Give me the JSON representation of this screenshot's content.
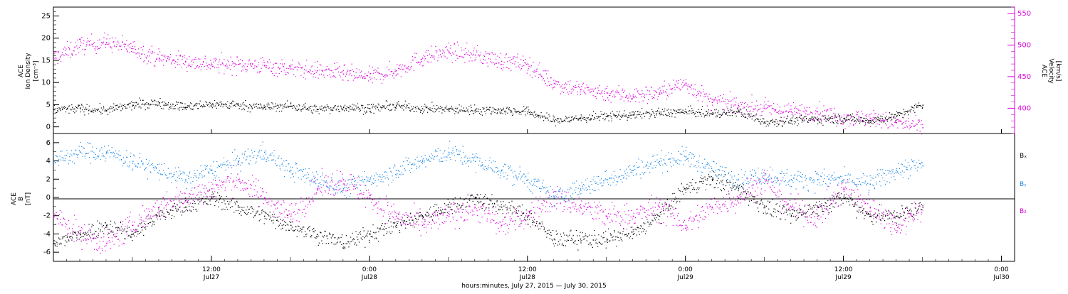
{
  "colors": {
    "black": "#000000",
    "magenta": "#dd00dd",
    "blue": "#1e88e5",
    "frame": "#000000"
  },
  "x_axis": {
    "title": "hours:minutes, July 27, 2015 — July 30, 2015",
    "ticks": [
      {
        "hours": 12,
        "time": "12:00",
        "day": "Jul27"
      },
      {
        "hours": 24,
        "time": "0:00",
        "day": "Jul28"
      },
      {
        "hours": 36,
        "time": "12:00",
        "day": "Jul28"
      },
      {
        "hours": 48,
        "time": "0:00",
        "day": "Jul29"
      },
      {
        "hours": 60,
        "time": "12:00",
        "day": "Jul29"
      },
      {
        "hours": 72,
        "time": "0:00",
        "day": "Jul30"
      }
    ]
  },
  "panel_top": {
    "left_label": [
      "ACE",
      "Ion Density",
      "[cm⁻³]"
    ],
    "right_label": [
      "ACE",
      "Velocity",
      "[km/s]"
    ],
    "left_ticks": [
      "0",
      "5",
      "10",
      "15",
      "20",
      "25"
    ],
    "right_ticks": [
      "400",
      "450",
      "500",
      "550"
    ]
  },
  "panel_bottom": {
    "left_label": [
      "ACE",
      "B",
      "[nT]"
    ],
    "left_ticks": [
      "-6",
      "-4",
      "-2",
      "0",
      "2",
      "4",
      "6"
    ],
    "legend": [
      {
        "text": "Bₓ",
        "color": "#000000"
      },
      {
        "text": "Bᵧ",
        "color": "#1e88e5"
      },
      {
        "text": "B₂",
        "color": "#dd00dd"
      }
    ]
  },
  "chart_data": [
    {
      "type": "scatter",
      "title": "",
      "xlabel": "hours:minutes, July 27, 2015 — July 30, 2015",
      "x_unit": "hours since Jul 27 00:00",
      "xlim": [
        0,
        73
      ],
      "series": [
        {
          "name": "Ion Density",
          "axis": "left",
          "ylabel": "ACE Ion Density [cm⁻³]",
          "ylim": [
            -1.5,
            27
          ],
          "color": "#000000",
          "x": [
            0,
            2,
            4,
            6,
            8,
            10,
            12,
            14,
            16,
            18,
            20,
            22,
            24,
            26,
            28,
            30,
            32,
            34,
            36,
            38,
            40,
            42,
            44,
            46,
            48,
            50,
            52,
            54,
            56,
            58,
            60,
            62,
            64,
            66
          ],
          "y": [
            4,
            4.2,
            3.8,
            5,
            5.5,
            4.5,
            5.2,
            5,
            4.5,
            4.8,
            4,
            4.5,
            4.2,
            4.8,
            4.2,
            4,
            3.9,
            3.8,
            3.5,
            1.5,
            2,
            2.5,
            2.8,
            3.2,
            3.5,
            3,
            3.5,
            1.2,
            1.5,
            1.8,
            2,
            1.5,
            2.5,
            5
          ]
        },
        {
          "name": "Velocity",
          "axis": "right",
          "ylabel": "ACE Velocity [km/s]",
          "ylim": [
            360,
            560
          ],
          "color": "#dd00dd",
          "x": [
            0,
            2,
            4,
            6,
            8,
            10,
            12,
            14,
            16,
            18,
            20,
            22,
            24,
            26,
            28,
            30,
            32,
            34,
            36,
            38,
            40,
            42,
            44,
            46,
            48,
            50,
            52,
            54,
            56,
            58,
            60,
            62,
            64,
            66
          ],
          "y": [
            480,
            500,
            505,
            495,
            480,
            475,
            470,
            470,
            468,
            463,
            460,
            455,
            450,
            460,
            480,
            490,
            485,
            475,
            470,
            440,
            430,
            425,
            420,
            425,
            440,
            410,
            405,
            400,
            395,
            395,
            385,
            385,
            378,
            370
          ]
        }
      ]
    },
    {
      "type": "scatter",
      "title": "",
      "ylabel": "ACE B [nT]",
      "ylim": [
        -7,
        7
      ],
      "x_unit": "hours since Jul 27 00:00",
      "xlim": [
        0,
        73
      ],
      "series": [
        {
          "name": "Bx",
          "color": "#000000",
          "x": [
            0,
            2,
            4,
            6,
            8,
            10,
            12,
            14,
            16,
            18,
            20,
            22,
            24,
            26,
            28,
            30,
            32,
            34,
            36,
            38,
            40,
            42,
            44,
            46,
            48,
            50,
            52,
            54,
            56,
            58,
            60,
            62,
            64,
            66
          ],
          "y": [
            -5,
            -4,
            -3,
            -4,
            -2,
            -1,
            0,
            -1,
            -2,
            -3,
            -4,
            -5,
            -4,
            -3,
            -2,
            -1,
            0,
            -1,
            -2,
            -4.5,
            -4.5,
            -4.5,
            -4,
            -2,
            1,
            2,
            1,
            -1,
            -2,
            -1,
            0,
            -2,
            -2,
            -1
          ]
        },
        {
          "name": "By",
          "color": "#1e88e5",
          "x": [
            0,
            2,
            4,
            6,
            8,
            10,
            12,
            14,
            16,
            18,
            20,
            22,
            24,
            26,
            28,
            30,
            32,
            34,
            36,
            38,
            40,
            42,
            44,
            46,
            48,
            50,
            52,
            54,
            56,
            58,
            60,
            62,
            64,
            66
          ],
          "y": [
            4,
            5,
            5,
            4,
            3,
            2,
            3,
            4,
            5,
            3,
            2,
            1,
            2,
            3,
            4,
            5,
            4,
            3,
            2,
            0,
            1,
            2,
            3,
            4,
            4.5,
            3,
            2,
            2.5,
            2,
            2,
            2,
            1.5,
            3,
            3.5
          ]
        },
        {
          "name": "Bz",
          "color": "#dd00dd",
          "x": [
            0,
            2,
            4,
            6,
            8,
            10,
            12,
            14,
            16,
            18,
            20,
            22,
            24,
            26,
            28,
            30,
            32,
            34,
            36,
            38,
            40,
            42,
            44,
            46,
            48,
            50,
            52,
            54,
            56,
            58,
            60,
            62,
            64,
            66
          ],
          "y": [
            -2,
            -4,
            -5,
            -3,
            -1,
            0,
            1,
            2,
            0,
            -2,
            1,
            2,
            0,
            -2,
            -3,
            -2,
            -1,
            -3,
            -2,
            0,
            -1,
            -2,
            -2,
            -1,
            -3,
            -1,
            0,
            2,
            -1,
            -2,
            1,
            -1,
            -3,
            -1
          ]
        }
      ]
    }
  ]
}
